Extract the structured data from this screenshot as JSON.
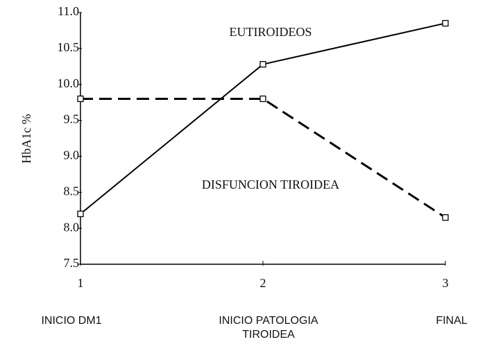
{
  "chart_data": {
    "type": "line",
    "y_label": "HbA1c %",
    "x": [
      1,
      2,
      3
    ],
    "categories": [
      "INICIO DM1",
      "INICIO PATOLOGIA TIROIDEA",
      "FINAL"
    ],
    "xlim": [
      1,
      3
    ],
    "xticks": [
      1,
      2,
      3
    ],
    "ylim": [
      7.5,
      11.0
    ],
    "yticks": [
      7.5,
      {
        "value": 8,
        "label": "8.0"
      },
      8.5,
      {
        "value": 9,
        "label": "9.0"
      },
      9.5,
      {
        "value": 10,
        "label": "10.0"
      },
      10.5,
      {
        "value": 11,
        "label": "11.0"
      }
    ],
    "series": [
      {
        "name": "EUTIROIDEOS",
        "color": "#000000",
        "line_style": "solid",
        "values": [
          8.2,
          10.28,
          10.85
        ]
      },
      {
        "name": "DISFUNCION TIROIDEA",
        "color": "#000000",
        "line_style": "dashed",
        "values": [
          9.8,
          9.8,
          8.15
        ]
      }
    ]
  }
}
